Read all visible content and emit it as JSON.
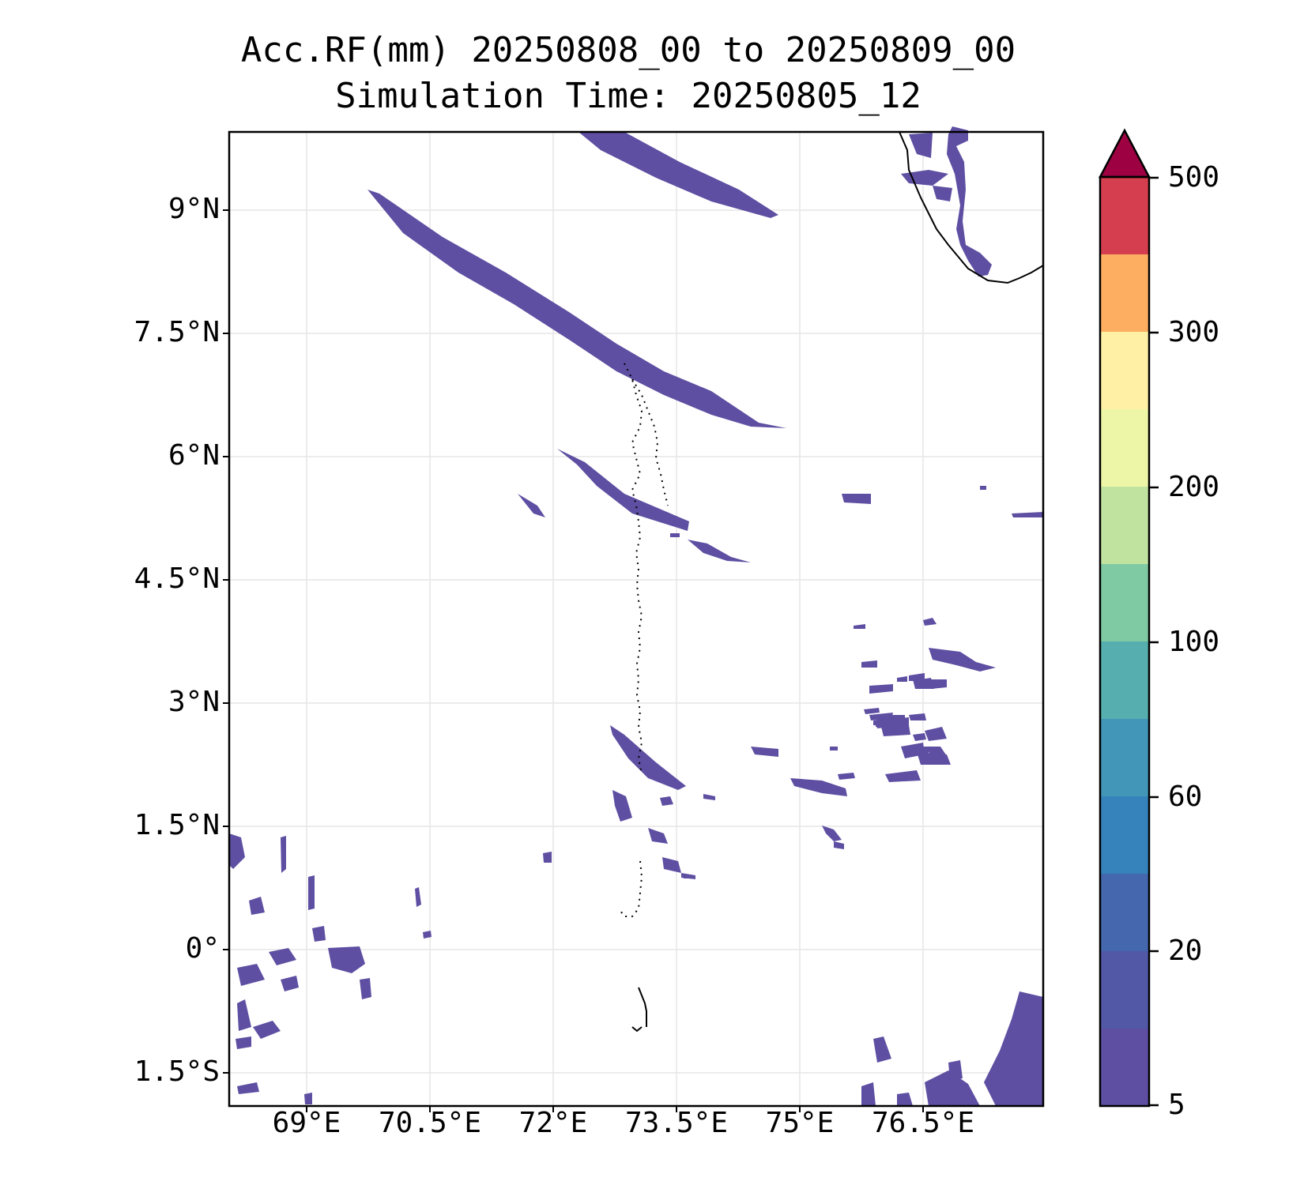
{
  "title": {
    "line1": "Acc.RF(mm) 20250808_00 to 20250809_00",
    "line2": "Simulation Time: 20250805_12"
  },
  "map": {
    "lat_labels": [
      "9°N",
      "7.5°N",
      "6°N",
      "4.5°N",
      "3°N",
      "1.5°N",
      "0°",
      "1.5°S"
    ],
    "lon_labels": [
      "69°E",
      "70.5°E",
      "72°E",
      "73.5°E",
      "75°E",
      "76.5°E"
    ],
    "grid": true,
    "coastline_color": "#000000",
    "rain_fill_color": "#5e4fa2"
  },
  "colorbar": {
    "tick_labels": [
      "500",
      "300",
      "200",
      "100",
      "60",
      "20",
      "5"
    ],
    "extend": "max",
    "colors": [
      "#5e4fa2",
      "#5258a5",
      "#4467ae",
      "#3683bb",
      "#4297b8",
      "#57aeae",
      "#7fc9a3",
      "#c0e4a0",
      "#edf6a6",
      "#fff0a6",
      "#fdae61",
      "#d53e4f",
      "#9e0142"
    ]
  }
}
